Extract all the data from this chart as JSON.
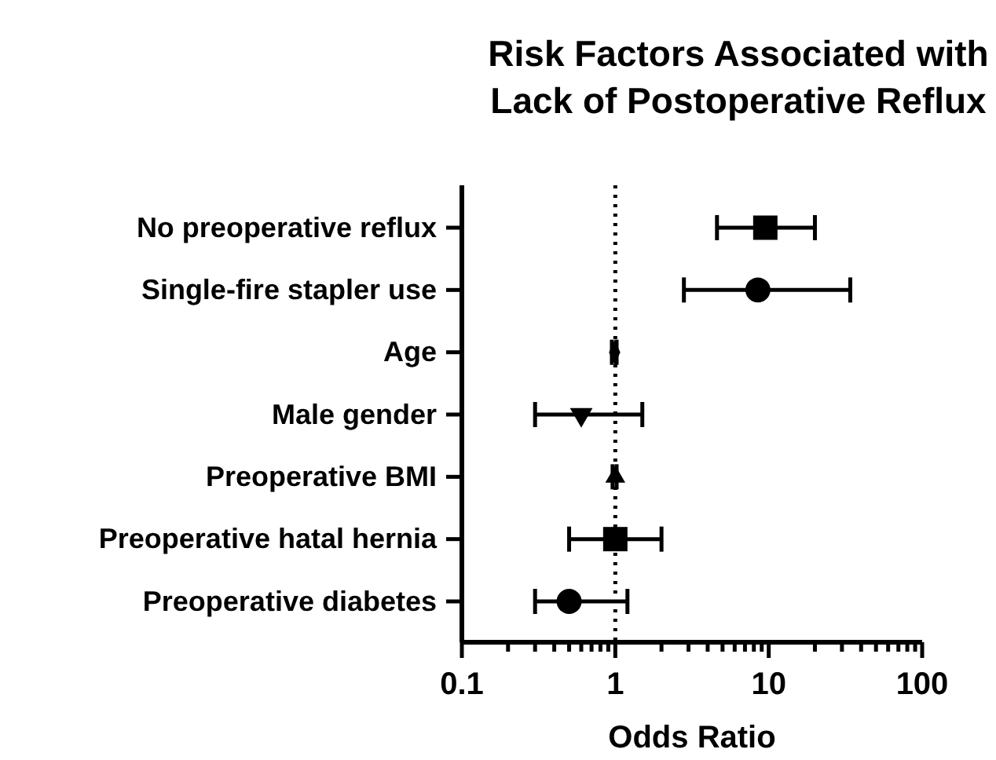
{
  "chart_data": {
    "type": "scatter",
    "orientation": "horizontal",
    "title": "Risk Factors Associated with Lack of Postoperative Reflux",
    "xlabel": "Odds Ratio",
    "log": "x",
    "categories": [
      "No preoperative reflux",
      "Single-fire stapler use",
      "Age",
      "Male gender",
      "Preoperative BMI",
      "Preoperative hatal hernia",
      "Preoperative diabetes"
    ],
    "xlim": [
      0.1,
      100
    ],
    "xticks": [
      0.1,
      {
        "value": 0.2,
        "label": null
      },
      {
        "value": 0.3,
        "label": null
      },
      {
        "value": 0.4,
        "label": null
      },
      {
        "value": 0.5,
        "label": null
      },
      {
        "value": 0.6,
        "label": null
      },
      {
        "value": 0.7,
        "label": null
      },
      {
        "value": 0.8,
        "label": null
      },
      {
        "value": 0.9,
        "label": null
      },
      1,
      {
        "value": 2,
        "label": null
      },
      {
        "value": 3,
        "label": null
      },
      {
        "value": 4,
        "label": null
      },
      {
        "value": 5,
        "label": null
      },
      {
        "value": 6,
        "label": null
      },
      {
        "value": 7,
        "label": null
      },
      {
        "value": 8,
        "label": null
      },
      {
        "value": 9,
        "label": null
      },
      10,
      {
        "value": 20,
        "label": null
      },
      {
        "value": 30,
        "label": null
      },
      {
        "value": 40,
        "label": null
      },
      {
        "value": 50,
        "label": null
      },
      {
        "value": 60,
        "label": null
      },
      {
        "value": 70,
        "label": null
      },
      {
        "value": 80,
        "label": null
      },
      {
        "value": 90,
        "label": null
      },
      100
    ],
    "grid": false,
    "ref_lines": [
      {
        "axis": "x",
        "value": 1,
        "line_style": "dotted",
        "color": "#000000"
      }
    ],
    "series": [
      {
        "color": "#000000",
        "marker": "square",
        "values": [
          9.5,
          null,
          null,
          null,
          null,
          null,
          null
        ],
        "errors": [
          [
            4.6,
            20
          ],
          null,
          null,
          null,
          null,
          null,
          null
        ]
      },
      {
        "color": "#000000",
        "marker": "circle",
        "values": [
          null,
          8.5,
          null,
          null,
          null,
          null,
          null
        ],
        "errors": [
          null,
          [
            2.8,
            34
          ],
          null,
          null,
          null,
          null,
          null
        ]
      },
      {
        "color": "#000000",
        "marker": "diamond",
        "values": [
          null,
          null,
          0.99,
          null,
          null,
          null,
          null
        ],
        "errors": [
          null,
          null,
          [
            0.95,
            1.02
          ],
          null,
          null,
          null,
          null
        ]
      },
      {
        "color": "#000000",
        "marker": "triangle-down",
        "values": [
          null,
          null,
          null,
          0.6,
          null,
          null,
          null
        ],
        "errors": [
          null,
          null,
          null,
          [
            0.3,
            1.5
          ],
          null,
          null,
          null
        ]
      },
      {
        "color": "#000000",
        "marker": "triangle",
        "values": [
          null,
          null,
          null,
          null,
          1.0,
          null,
          null
        ],
        "errors": [
          null,
          null,
          null,
          null,
          [
            0.96,
            1.02
          ],
          null,
          null
        ]
      },
      {
        "color": "#000000",
        "marker": "square",
        "values": [
          null,
          null,
          null,
          null,
          null,
          1.0,
          null
        ],
        "errors": [
          null,
          null,
          null,
          null,
          null,
          [
            0.5,
            2.0
          ],
          null
        ]
      },
      {
        "color": "#000000",
        "marker": "circle",
        "values": [
          null,
          null,
          null,
          null,
          null,
          null,
          0.5
        ],
        "errors": [
          null,
          null,
          null,
          null,
          null,
          null,
          [
            0.3,
            1.2
          ]
        ]
      }
    ]
  }
}
